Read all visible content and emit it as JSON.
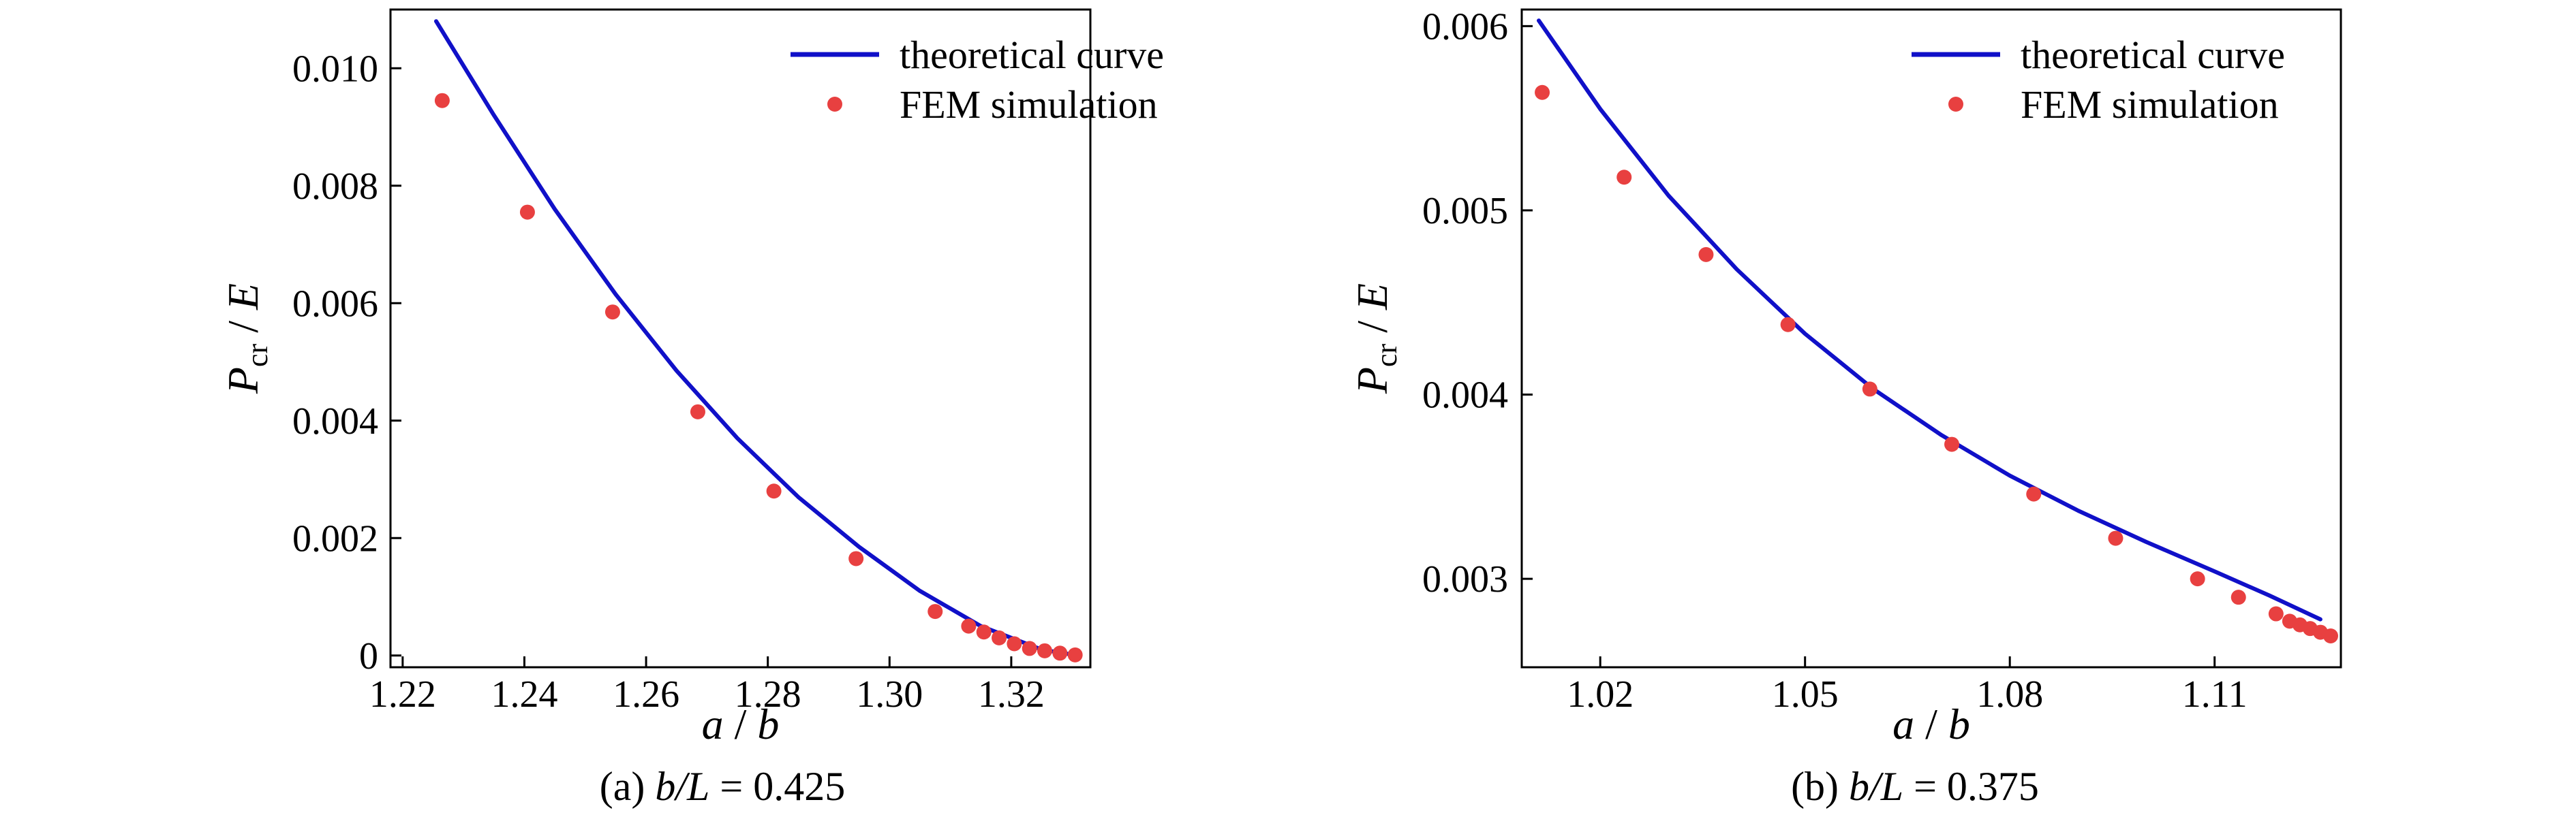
{
  "chart_data": [
    {
      "type": "scatter",
      "caption": {
        "prefix": "(a) ",
        "var": "b/L",
        "rest": " = 0.425"
      },
      "xlabel": {
        "a": "a",
        "sep": " / ",
        "b": "b"
      },
      "ylabel": {
        "p": "P",
        "sub": "cr",
        "sep": " / ",
        "e": "E"
      },
      "xlim": [
        1.218,
        1.333
      ],
      "ylim": [
        -0.0002,
        0.011
      ],
      "xticks": [
        1.22,
        1.24,
        1.26,
        1.28,
        1.3,
        1.32
      ],
      "xtick_labels": [
        "1.22",
        "1.24",
        "1.26",
        "1.28",
        "1.30",
        "1.32"
      ],
      "yticks": [
        0,
        0.002,
        0.004,
        0.006,
        0.008,
        0.01
      ],
      "ytick_labels": [
        "0",
        "0.002",
        "0.004",
        "0.006",
        "0.008",
        "0.010"
      ],
      "legend_position": "top-right",
      "series": [
        {
          "name": "theoretical curve",
          "kind": "line",
          "color": "#1010c8",
          "x": [
            1.2255,
            1.235,
            1.245,
            1.255,
            1.265,
            1.275,
            1.285,
            1.295,
            1.305,
            1.315,
            1.325,
            1.331
          ],
          "y": [
            0.0108,
            0.0092,
            0.0076,
            0.00615,
            0.00485,
            0.0037,
            0.0027,
            0.00185,
            0.0011,
            0.0005,
            0.0001,
            0.0
          ]
        },
        {
          "name": "FEM simulation",
          "kind": "scatter",
          "color": "#e84040",
          "x": [
            1.2265,
            1.2405,
            1.2545,
            1.2685,
            1.281,
            1.2945,
            1.3075,
            1.313,
            1.3155,
            1.318,
            1.3205,
            1.323,
            1.3255,
            1.328,
            1.3305
          ],
          "y": [
            0.00945,
            0.00755,
            0.00585,
            0.00415,
            0.0028,
            0.00165,
            0.00075,
            0.0005,
            0.0004,
            0.0003,
            0.0002,
            0.00012,
            8e-05,
            4e-05,
            1e-05
          ]
        }
      ]
    },
    {
      "type": "scatter",
      "caption": {
        "prefix": "(b) ",
        "var": "b/L",
        "rest": " = 0.375"
      },
      "xlabel": {
        "a": "a",
        "sep": " / ",
        "b": "b"
      },
      "ylabel": {
        "p": "P",
        "sub": "cr",
        "sep": " / ",
        "e": "E"
      },
      "xlim": [
        1.0085,
        1.1285
      ],
      "ylim": [
        0.00252,
        0.00609
      ],
      "xticks": [
        1.02,
        1.05,
        1.08,
        1.11
      ],
      "xtick_labels": [
        "1.02",
        "1.05",
        "1.08",
        "1.11"
      ],
      "yticks": [
        0.003,
        0.004,
        0.005,
        0.006
      ],
      "ytick_labels": [
        "0.003",
        "0.004",
        "0.005",
        "0.006"
      ],
      "legend_position": "top-right",
      "series": [
        {
          "name": "theoretical curve",
          "kind": "line",
          "color": "#1010c8",
          "x": [
            1.011,
            1.02,
            1.03,
            1.04,
            1.05,
            1.06,
            1.07,
            1.08,
            1.09,
            1.1,
            1.11,
            1.118,
            1.1255
          ],
          "y": [
            0.00603,
            0.00555,
            0.00508,
            0.00468,
            0.00433,
            0.00403,
            0.00378,
            0.00356,
            0.00337,
            0.0032,
            0.00304,
            0.00291,
            0.00278
          ]
        },
        {
          "name": "FEM simulation",
          "kind": "scatter",
          "color": "#e84040",
          "x": [
            1.0115,
            1.0235,
            1.0355,
            1.0475,
            1.0595,
            1.0715,
            1.0835,
            1.0955,
            1.1075,
            1.1135,
            1.119,
            1.121,
            1.1225,
            1.124,
            1.1255,
            1.127
          ],
          "y": [
            0.00564,
            0.00518,
            0.00476,
            0.00438,
            0.00403,
            0.00373,
            0.00346,
            0.00322,
            0.003,
            0.0029,
            0.00281,
            0.00277,
            0.00275,
            0.00273,
            0.00271,
            0.00269
          ]
        }
      ]
    }
  ]
}
